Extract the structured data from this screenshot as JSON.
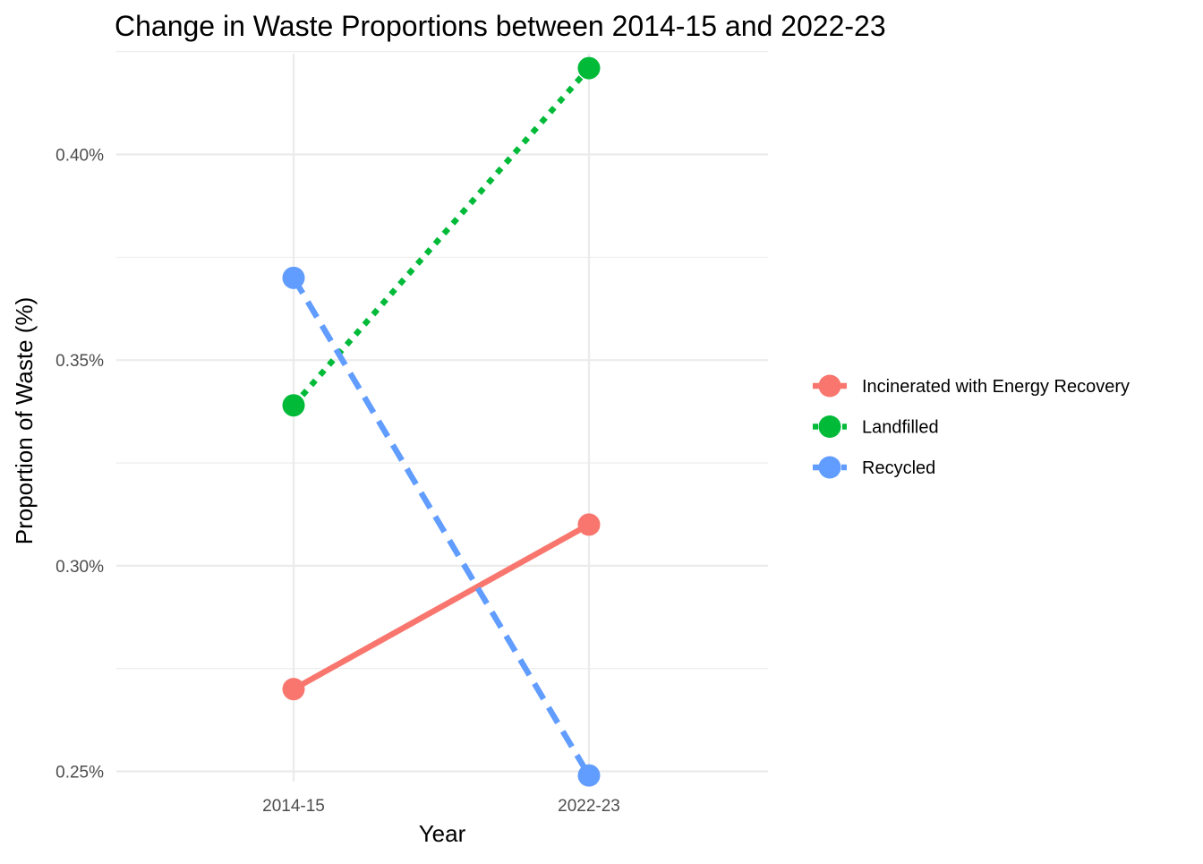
{
  "chart_data": {
    "type": "line",
    "title": "Change in Waste Proportions between 2014-15 and 2022-23",
    "xlabel": "Year",
    "ylabel": "Proportion of Waste (%)",
    "categories": [
      "2014-15",
      "2022-23"
    ],
    "ylim": [
      0.2475,
      0.4245
    ],
    "y_ticks": [
      0.25,
      0.3,
      0.35,
      0.4
    ],
    "y_tick_labels": [
      "0.25%",
      "0.30%",
      "0.35%",
      "0.40%"
    ],
    "y_minor_ticks": [
      0.275,
      0.325,
      0.375,
      0.425
    ],
    "grid": true,
    "legend_position": "right",
    "series": [
      {
        "name": "Incinerated with Energy Recovery",
        "values": [
          0.27,
          0.31
        ],
        "color": "#F8766D",
        "linetype": "solid"
      },
      {
        "name": "Landfilled",
        "values": [
          0.339,
          0.421
        ],
        "color": "#00BA38",
        "linetype": "dotted"
      },
      {
        "name": "Recycled",
        "values": [
          0.37,
          0.249
        ],
        "color": "#619CFF",
        "linetype": "dashed"
      }
    ]
  }
}
